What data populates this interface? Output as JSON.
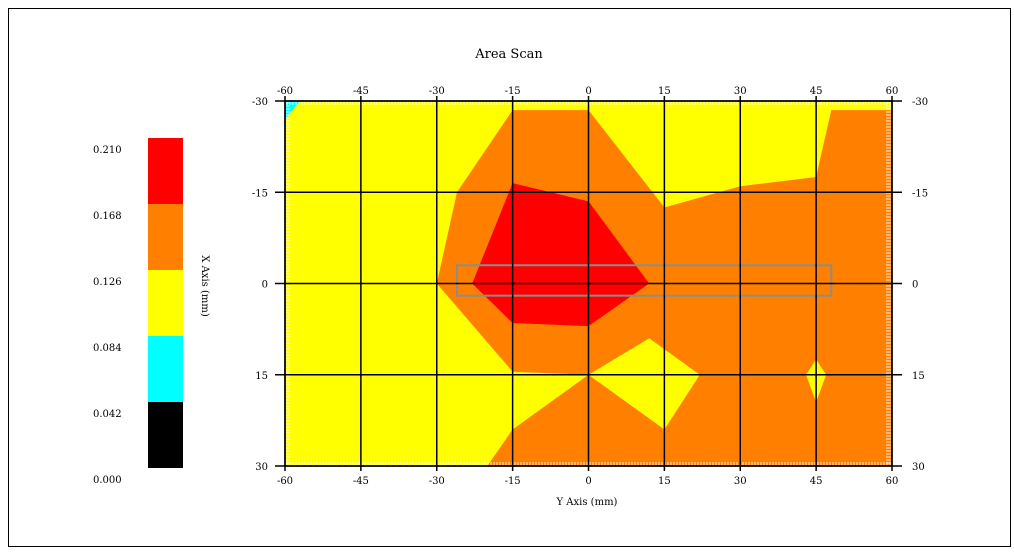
{
  "chart_data": {
    "type": "heatmap",
    "title": "Area Scan",
    "xlabel": "Y Axis (mm)",
    "ylabel": "X Axis (mm)",
    "x_range": [
      -60,
      60
    ],
    "y_range": [
      -30,
      30
    ],
    "x_ticks": [
      "-60",
      "-45",
      "-30",
      "-15",
      "0",
      "15",
      "30",
      "45",
      "60"
    ],
    "y_ticks": [
      "-30",
      "-15",
      "0",
      "15",
      "30"
    ],
    "grid": true,
    "colorbar": {
      "labels": [
        "0.210",
        "0.168",
        "0.126",
        "0.084",
        "0.042",
        "0.000"
      ],
      "bins": [
        {
          "min": 0.168,
          "max": 0.21,
          "color": "#ff0000"
        },
        {
          "min": 0.126,
          "max": 0.168,
          "color": "#ff8000"
        },
        {
          "min": 0.084,
          "max": 0.126,
          "color": "#ffff00"
        },
        {
          "min": 0.042,
          "max": 0.084,
          "color": "#00ffff"
        },
        {
          "min": 0.0,
          "max": 0.042,
          "color": "#000000"
        }
      ]
    },
    "regions": [
      {
        "level": "0.126-0.168",
        "color": "#ff8000",
        "points": [
          [
            -15,
            -28.5
          ],
          [
            0,
            -28.5
          ],
          [
            15,
            -12.5
          ],
          [
            30,
            -16
          ],
          [
            45,
            -17.5
          ],
          [
            48,
            -28.5
          ],
          [
            60,
            -28.5
          ],
          [
            60,
            30
          ],
          [
            -20,
            30
          ],
          [
            -15,
            24
          ],
          [
            0,
            15
          ],
          [
            -15,
            14.5
          ],
          [
            -30,
            0
          ],
          [
            -26,
            -15
          ]
        ]
      },
      {
        "level": "0.168-0.210",
        "color": "#ff0000",
        "points": [
          [
            -15,
            -16.5
          ],
          [
            0,
            -13.5
          ],
          [
            12,
            0
          ],
          [
            0,
            7
          ],
          [
            -15,
            6.5
          ],
          [
            -23,
            0
          ]
        ]
      },
      {
        "level": "0.084-0.126",
        "color": "#ffff00",
        "points": [
          [
            0,
            15
          ],
          [
            12,
            9
          ],
          [
            22,
            15
          ],
          [
            15,
            24
          ]
        ]
      },
      {
        "level": "0.084-0.126",
        "color": "#ffff00",
        "points": [
          [
            45,
            12.5
          ],
          [
            47,
            15
          ],
          [
            45,
            19.5
          ],
          [
            43,
            15
          ]
        ]
      },
      {
        "level": "0.042-0.084",
        "color": "#00ffff",
        "points": [
          [
            -60,
            -30
          ],
          [
            -57,
            -30
          ],
          [
            -60,
            -27
          ]
        ]
      }
    ],
    "highlight_box": {
      "x_range": [
        -26,
        48
      ],
      "y_range": [
        -3,
        2
      ]
    }
  }
}
